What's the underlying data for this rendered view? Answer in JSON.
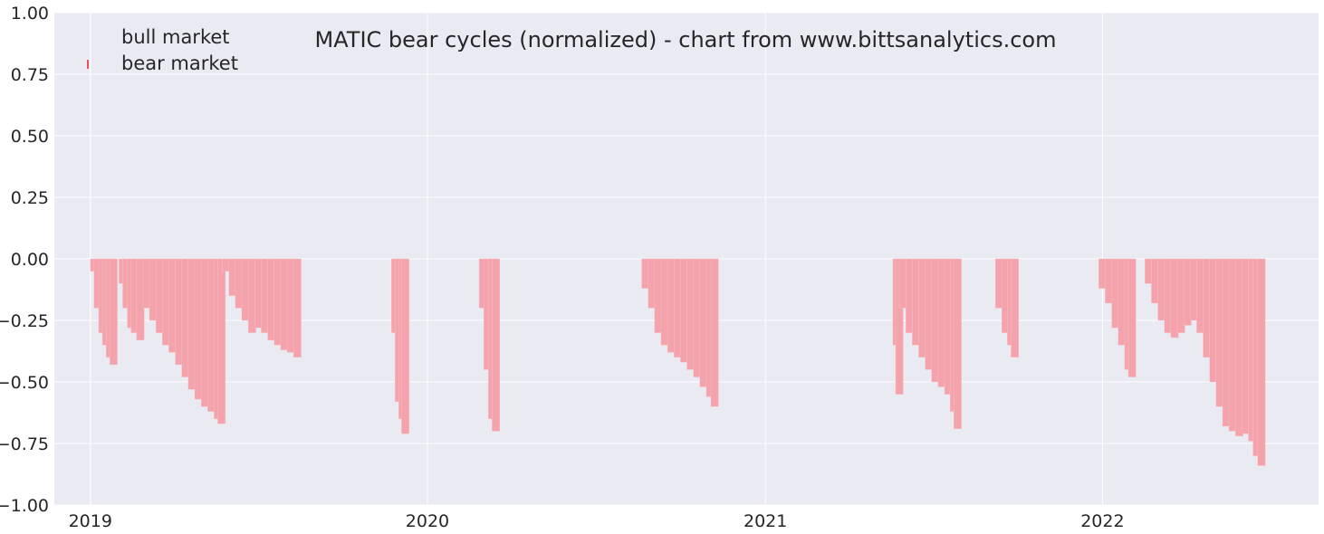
{
  "chart_data": {
    "type": "bar",
    "title": "MATIC bear cycles (normalized)  - chart from www.bittsanalytics.com",
    "xlabel": "",
    "ylabel": "",
    "xlim": [
      "2018-11-23",
      "2022-08-23"
    ],
    "ylim": [
      -1.0,
      1.0
    ],
    "x_ticks": [
      "2019",
      "2020",
      "2021",
      "2022"
    ],
    "y_ticks": [
      "1.00",
      "0.75",
      "0.50",
      "0.25",
      "0.00",
      "−0.25",
      "−0.50",
      "−0.75",
      "−1.00"
    ],
    "grid": true,
    "legend": {
      "placement": "top-left",
      "entries": [
        "bull market",
        "bear market"
      ]
    },
    "colors": {
      "background": "#eaeaf2",
      "bear": "#f4a3ac",
      "bear_legend": "#e8505f",
      "grid": "#ffffff"
    },
    "series": [
      {
        "name": "bear market",
        "points": [
          [
            "2019-01-01",
            -0.05
          ],
          [
            "2019-01-05",
            -0.2
          ],
          [
            "2019-01-10",
            -0.3
          ],
          [
            "2019-01-14",
            -0.35
          ],
          [
            "2019-01-18",
            -0.4
          ],
          [
            "2019-01-22",
            -0.43
          ],
          [
            "2019-02-01",
            -0.1
          ],
          [
            "2019-02-05",
            -0.2
          ],
          [
            "2019-02-10",
            -0.28
          ],
          [
            "2019-02-14",
            -0.3
          ],
          [
            "2019-02-20",
            -0.33
          ],
          [
            "2019-02-27",
            -0.2
          ],
          [
            "2019-03-06",
            -0.25
          ],
          [
            "2019-03-13",
            -0.3
          ],
          [
            "2019-03-20",
            -0.35
          ],
          [
            "2019-03-27",
            -0.38
          ],
          [
            "2019-04-03",
            -0.43
          ],
          [
            "2019-04-10",
            -0.48
          ],
          [
            "2019-04-17",
            -0.53
          ],
          [
            "2019-04-24",
            -0.57
          ],
          [
            "2019-05-01",
            -0.6
          ],
          [
            "2019-05-08",
            -0.62
          ],
          [
            "2019-05-15",
            -0.65
          ],
          [
            "2019-05-19",
            -0.67
          ],
          [
            "2019-05-24",
            -0.05
          ],
          [
            "2019-05-31",
            -0.15
          ],
          [
            "2019-06-07",
            -0.2
          ],
          [
            "2019-06-14",
            -0.25
          ],
          [
            "2019-06-21",
            -0.3
          ],
          [
            "2019-06-28",
            -0.28
          ],
          [
            "2019-07-05",
            -0.3
          ],
          [
            "2019-07-12",
            -0.33
          ],
          [
            "2019-07-19",
            -0.35
          ],
          [
            "2019-07-26",
            -0.37
          ],
          [
            "2019-08-02",
            -0.38
          ],
          [
            "2019-08-09",
            -0.4
          ],
          [
            "2019-11-23",
            -0.3
          ],
          [
            "2019-11-27",
            -0.58
          ],
          [
            "2019-12-01",
            -0.65
          ],
          [
            "2019-12-04",
            -0.71
          ],
          [
            "2020-02-26",
            -0.2
          ],
          [
            "2020-03-02",
            -0.45
          ],
          [
            "2020-03-07",
            -0.65
          ],
          [
            "2020-03-11",
            -0.7
          ],
          [
            "2020-08-20",
            -0.12
          ],
          [
            "2020-08-27",
            -0.2
          ],
          [
            "2020-09-03",
            -0.3
          ],
          [
            "2020-09-10",
            -0.35
          ],
          [
            "2020-09-17",
            -0.38
          ],
          [
            "2020-09-24",
            -0.4
          ],
          [
            "2020-10-01",
            -0.42
          ],
          [
            "2020-10-08",
            -0.45
          ],
          [
            "2020-10-15",
            -0.48
          ],
          [
            "2020-10-22",
            -0.52
          ],
          [
            "2020-10-29",
            -0.56
          ],
          [
            "2020-11-03",
            -0.6
          ],
          [
            "2021-05-19",
            -0.35
          ],
          [
            "2021-05-22",
            -0.55
          ],
          [
            "2021-05-26",
            -0.2
          ],
          [
            "2021-06-02",
            -0.3
          ],
          [
            "2021-06-09",
            -0.35
          ],
          [
            "2021-06-16",
            -0.4
          ],
          [
            "2021-06-23",
            -0.45
          ],
          [
            "2021-06-30",
            -0.5
          ],
          [
            "2021-07-07",
            -0.52
          ],
          [
            "2021-07-14",
            -0.55
          ],
          [
            "2021-07-20",
            -0.62
          ],
          [
            "2021-07-24",
            -0.69
          ],
          [
            "2021-09-07",
            -0.2
          ],
          [
            "2021-09-14",
            -0.3
          ],
          [
            "2021-09-20",
            -0.35
          ],
          [
            "2021-09-24",
            -0.4
          ],
          [
            "2021-12-28",
            -0.12
          ],
          [
            "2022-01-04",
            -0.18
          ],
          [
            "2022-01-11",
            -0.28
          ],
          [
            "2022-01-18",
            -0.35
          ],
          [
            "2022-01-25",
            -0.45
          ],
          [
            "2022-01-29",
            -0.48
          ],
          [
            "2022-02-16",
            -0.1
          ],
          [
            "2022-02-23",
            -0.18
          ],
          [
            "2022-03-02",
            -0.25
          ],
          [
            "2022-03-09",
            -0.3
          ],
          [
            "2022-03-16",
            -0.32
          ],
          [
            "2022-03-23",
            -0.3
          ],
          [
            "2022-03-30",
            -0.27
          ],
          [
            "2022-04-06",
            -0.25
          ],
          [
            "2022-04-13",
            -0.3
          ],
          [
            "2022-04-20",
            -0.4
          ],
          [
            "2022-04-27",
            -0.5
          ],
          [
            "2022-05-04",
            -0.6
          ],
          [
            "2022-05-11",
            -0.68
          ],
          [
            "2022-05-18",
            -0.7
          ],
          [
            "2022-05-25",
            -0.72
          ],
          [
            "2022-06-01",
            -0.71
          ],
          [
            "2022-06-08",
            -0.74
          ],
          [
            "2022-06-13",
            -0.8
          ],
          [
            "2022-06-18",
            -0.84
          ]
        ]
      }
    ]
  }
}
